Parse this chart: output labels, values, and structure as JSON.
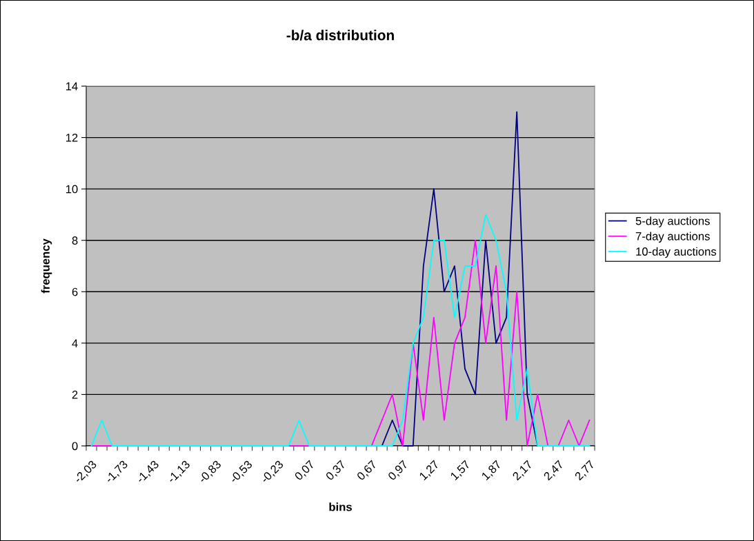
{
  "chart_data": {
    "type": "line",
    "title": "-b/a distribution",
    "xlabel": "bins",
    "ylabel": "frequency",
    "categories": [
      "-2,03",
      null,
      null,
      "-1,73",
      null,
      null,
      "-1,43",
      null,
      null,
      "-1,13",
      null,
      null,
      "-0,83",
      null,
      null,
      "-0,53",
      null,
      null,
      "-0,23",
      null,
      null,
      "0,07",
      null,
      null,
      "0,37",
      null,
      null,
      "0,67",
      null,
      null,
      "0,97",
      null,
      null,
      "1,27",
      null,
      null,
      "1,57",
      null,
      null,
      "1,87",
      null,
      null,
      "2,17",
      null,
      null,
      "2,47",
      null,
      null,
      "2,77"
    ],
    "series": [
      {
        "name": "5-day auctions",
        "color": "#000080",
        "values": [
          null,
          null,
          null,
          null,
          null,
          null,
          null,
          null,
          null,
          null,
          null,
          null,
          null,
          null,
          null,
          null,
          null,
          null,
          null,
          null,
          null,
          null,
          null,
          null,
          null,
          null,
          null,
          null,
          0,
          1,
          0,
          0,
          7,
          10,
          6,
          7,
          3,
          2,
          8,
          4,
          5,
          13,
          2,
          0,
          null,
          null,
          null,
          null,
          null
        ]
      },
      {
        "name": "7-day auctions",
        "color": "#ff00ff",
        "values": [
          0,
          0,
          0,
          null,
          null,
          null,
          null,
          null,
          null,
          null,
          null,
          null,
          null,
          null,
          null,
          null,
          null,
          null,
          null,
          0,
          0,
          0,
          null,
          null,
          null,
          null,
          null,
          0,
          1,
          2,
          0,
          4,
          1,
          5,
          1,
          4,
          5,
          8,
          4,
          7,
          1,
          6,
          0,
          2,
          0,
          0,
          1,
          0,
          1
        ]
      },
      {
        "name": "10-day auctions",
        "color": "#00ffff",
        "values": [
          0,
          1,
          0,
          0,
          0,
          0,
          0,
          0,
          0,
          0,
          0,
          0,
          0,
          0,
          0,
          0,
          0,
          0,
          0,
          0,
          1,
          0,
          0,
          0,
          0,
          0,
          0,
          0,
          0,
          0,
          1,
          4,
          5,
          8,
          8,
          5,
          7,
          7,
          9,
          8,
          6,
          1,
          3,
          0,
          0,
          0,
          0,
          0,
          0
        ]
      }
    ],
    "ylim": [
      0,
      14
    ],
    "yticks": [
      0,
      2,
      4,
      6,
      8,
      10,
      12,
      14
    ],
    "grid": "y",
    "legend": "right",
    "marker": "none",
    "line_style": "solid"
  }
}
